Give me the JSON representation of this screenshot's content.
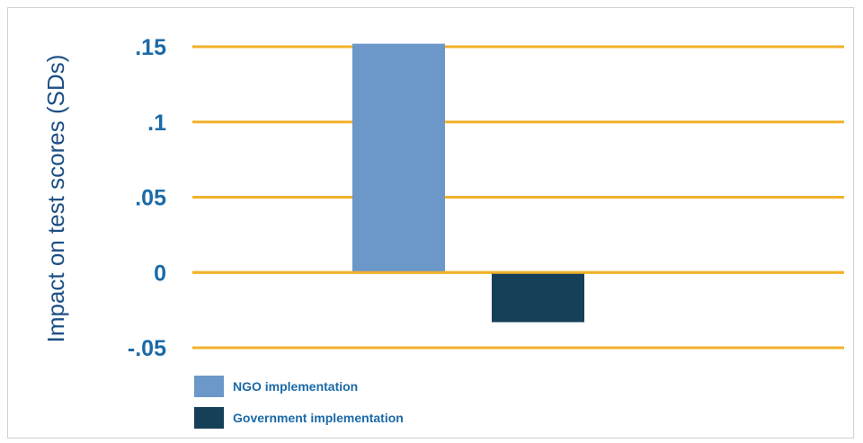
{
  "chart_data": {
    "type": "bar",
    "ylabel": "Impact on test scores (SDs)",
    "ylim": [
      -0.05,
      0.15
    ],
    "yticks": [
      {
        "value": 0.15,
        "label": ".15"
      },
      {
        "value": 0.1,
        "label": ".1"
      },
      {
        "value": 0.05,
        "label": ".05"
      },
      {
        "value": 0,
        "label": "0"
      },
      {
        "value": -0.05,
        "label": "-.05"
      }
    ],
    "grid": true,
    "legend_position": "bottom-left",
    "series": [
      {
        "name": "NGO implementation",
        "value": 0.152,
        "color": "#6b97c9"
      },
      {
        "name": "Government implementation",
        "value": -0.033,
        "color": "#163f58"
      }
    ],
    "colors": {
      "grid": "#f2b12b",
      "ticks": "#1b6aa8",
      "ylabel": "#1c4f84"
    }
  }
}
